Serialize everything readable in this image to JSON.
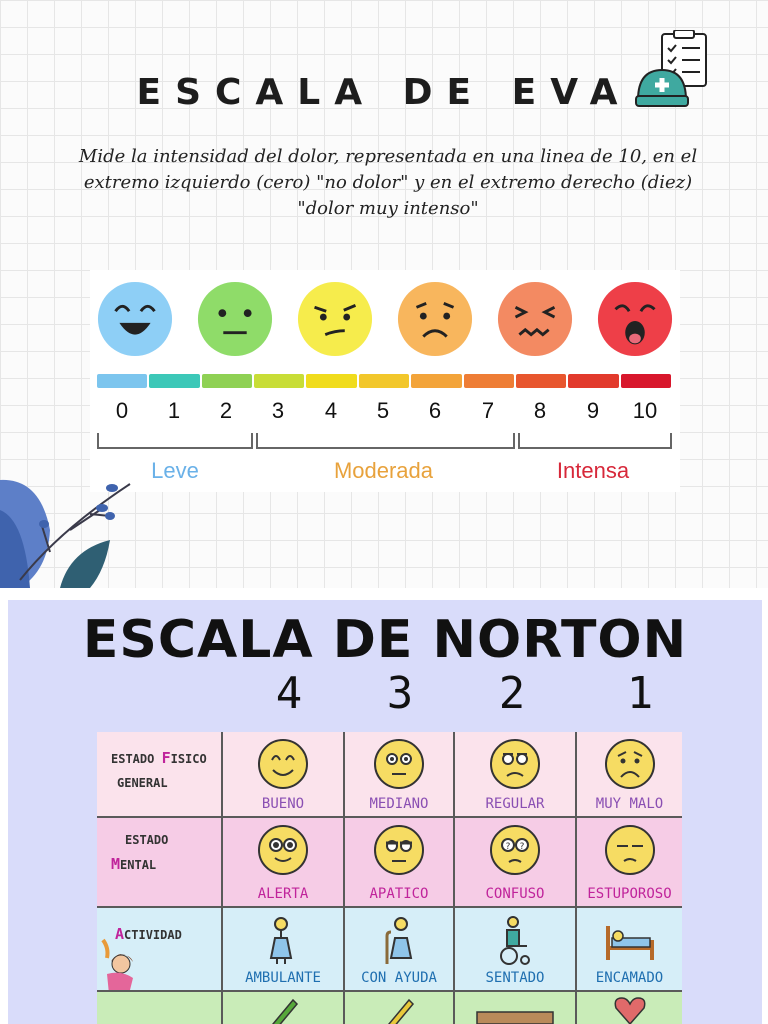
{
  "eva": {
    "title": "ESCALA DE EVA",
    "description": "Mide la intensidad del dolor, representada en una linea de 10, en el extremo izquierdo (cero) \"no dolor\" y en el extremo derecho (diez) \"dolor muy intenso\"",
    "numbers": [
      "0",
      "1",
      "2",
      "3",
      "4",
      "5",
      "6",
      "7",
      "8",
      "9",
      "10"
    ],
    "categories": [
      {
        "label": "Leve",
        "color": "#6ab1e8"
      },
      {
        "label": "Moderada",
        "color": "#e8a23c"
      },
      {
        "label": "Intensa",
        "color": "#d7283a"
      }
    ],
    "scale_colors": [
      "#7cc5ee",
      "#3cc8b8",
      "#8fd154",
      "#c8dd37",
      "#f0dc1d",
      "#f2c72b",
      "#f3a43a",
      "#ee7d35",
      "#e8562e",
      "#e23a2c",
      "#d8172c"
    ],
    "face_colors": [
      "#8ecff6",
      "#8fdc69",
      "#f6ec4c",
      "#f8b65d",
      "#f38a62",
      "#ee3f48"
    ]
  },
  "norton": {
    "title": "ESCALA DE NORTON",
    "scores": [
      "4",
      "3",
      "2",
      "1"
    ],
    "rows": [
      {
        "label_line1": "ESTADO ",
        "label_hl": "F",
        "label_rest": "ISICO",
        "label_line2": "GENERAL",
        "cells": [
          "BUENO",
          "MEDIANO",
          "REGULAR",
          "MUY MALO"
        ],
        "bg": "#fbe3ec",
        "text_color": "#8a4fb3"
      },
      {
        "label_line1": "ESTADO",
        "label_hl": "M",
        "label_rest": "ENTAL",
        "label_line2": "",
        "cells": [
          "ALERTA",
          "APATICO",
          "CONFUSO",
          "ESTUPOROSO"
        ],
        "bg": "#f6cce6",
        "text_color": "#c0249b"
      },
      {
        "label_line1": "",
        "label_hl": "A",
        "label_rest": "CTIVIDAD",
        "label_line2": "",
        "cells": [
          "AMBULANTE",
          "CON AYUDA",
          "SENTADO",
          "ENCAMADO"
        ],
        "bg": "#d6eef8",
        "text_color": "#1f6fb0"
      },
      {
        "label_line1": "",
        "label_hl": "",
        "label_rest": "",
        "label_line2": "",
        "cells": [
          "",
          "",
          "",
          ""
        ],
        "bg": "#c9ecb8",
        "text_color": "#333"
      }
    ]
  }
}
